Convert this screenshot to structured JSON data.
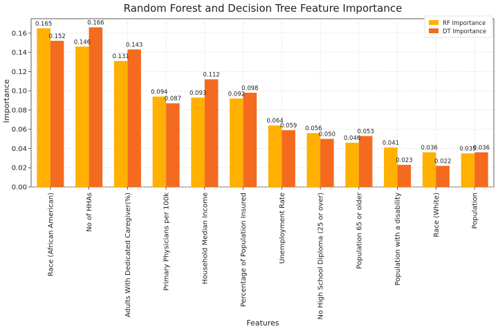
{
  "chart_data": {
    "type": "bar",
    "title": "Random Forest and Decision Tree Feature Importance",
    "xlabel": "Features",
    "ylabel": "Importance",
    "ylim": [
      0,
      0.175
    ],
    "yticks": [
      "0.00",
      "0.02",
      "0.04",
      "0.06",
      "0.08",
      "0.10",
      "0.12",
      "0.14",
      "0.16"
    ],
    "grid": true,
    "legend_position": "top-right",
    "categories": [
      "Race (African American)",
      "No of HHAs",
      "Adults With Dedicated Caregiver(%)",
      "Primary Physicians per 100k",
      "Household Median Income",
      "Percentage of Population Insured",
      "Unemployment Rate",
      "No High School Diploma (25 or over)",
      "Population 65 or older",
      "Population with a disability",
      "Race (White)",
      "Population"
    ],
    "series": [
      {
        "name": "RF Importance",
        "color": "#FFB000",
        "values": [
          0.165,
          0.146,
          0.131,
          0.094,
          0.093,
          0.092,
          0.064,
          0.056,
          0.046,
          0.041,
          0.036,
          0.035
        ],
        "labels": [
          "0.165",
          "0.146",
          "0.131",
          "0.094",
          "0.093",
          "0.092",
          "0.064",
          "0.056",
          "0.046",
          "0.041",
          "0.036",
          "0.035"
        ]
      },
      {
        "name": "DT Importance",
        "color": "#F46A1F",
        "values": [
          0.152,
          0.166,
          0.143,
          0.087,
          0.112,
          0.098,
          0.059,
          0.05,
          0.053,
          0.023,
          0.022,
          0.036
        ],
        "labels": [
          "0.152",
          "0.166",
          "0.143",
          "0.087",
          "0.112",
          "0.098",
          "0.059",
          "0.050",
          "0.053",
          "0.023",
          "0.022",
          "0.036"
        ]
      }
    ]
  }
}
